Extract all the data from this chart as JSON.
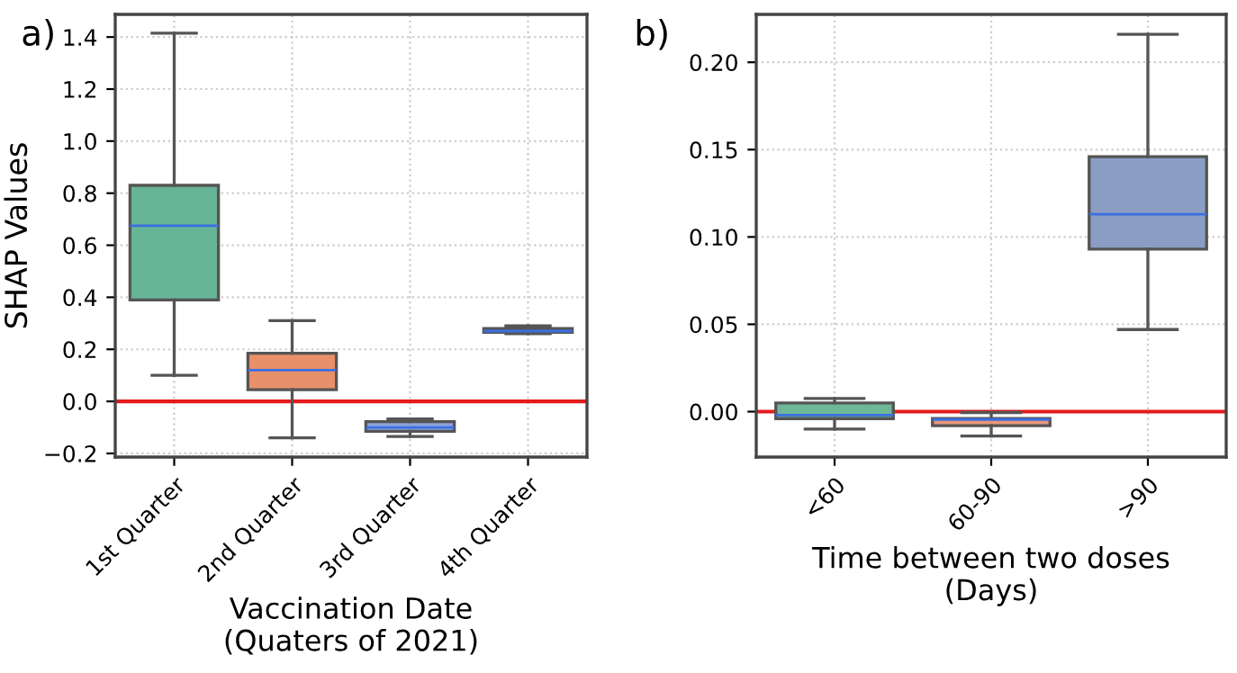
{
  "chart_data": [
    {
      "type": "box",
      "annotations": [
        "a)"
      ],
      "xlabel": "Vaccination Date\n(Quaters of 2021)",
      "ylabel": "SHAP Values",
      "categories": [
        "1st Quarter",
        "2nd Quarter",
        "3rd Quarter",
        "4th Quarter"
      ],
      "colors": [
        "#66b596",
        "#e8906a",
        "#8ca2d9",
        "#5a6ea8"
      ],
      "boxes": [
        {
          "low": 0.1,
          "q1": 0.39,
          "median": 0.675,
          "q3": 0.83,
          "high": 1.415
        },
        {
          "low": -0.14,
          "q1": 0.045,
          "median": 0.12,
          "q3": 0.185,
          "high": 0.31
        },
        {
          "low": -0.135,
          "q1": -0.115,
          "median": -0.1,
          "q3": -0.078,
          "high": -0.068
        },
        {
          "low": 0.26,
          "q1": 0.265,
          "median": 0.27,
          "q3": 0.28,
          "high": 0.29
        }
      ],
      "ylim": [
        -0.214,
        1.487
      ],
      "yticks": [
        {
          "value": -0.2,
          "label": "−0.2"
        },
        "0.0",
        0.2,
        0.4,
        0.6,
        0.8,
        "1.0",
        1.2,
        1.4
      ],
      "ref_lines": [
        {
          "axis": "y",
          "value": 0,
          "color": "#e41a1c"
        }
      ],
      "grid": true
    },
    {
      "type": "box",
      "annotations": [
        "b)"
      ],
      "xlabel": "Time between two doses\n(Days)",
      "categories": [
        "<60",
        "60-90",
        ">90"
      ],
      "colors": [
        "#6fb897",
        "#e8967a",
        "#8b9dc3"
      ],
      "boxes": [
        {
          "low": -0.01,
          "q1": -0.004,
          "median": -0.002,
          "q3": 0.005,
          "high": 0.0075
        },
        {
          "low": -0.014,
          "q1": -0.008,
          "median": -0.0045,
          "q3": -0.004,
          "high": -0.0005
        },
        {
          "low": 0.047,
          "q1": 0.093,
          "median": 0.113,
          "q3": 0.146,
          "high": 0.216
        }
      ],
      "ylim": [
        -0.026,
        0.2274
      ],
      "yticks": [
        "0.00",
        0.05,
        "0.10",
        0.15,
        "0.20"
      ],
      "ref_lines": [
        {
          "axis": "y",
          "value": 0,
          "color": "#e41a1c"
        }
      ],
      "grid": true
    }
  ]
}
